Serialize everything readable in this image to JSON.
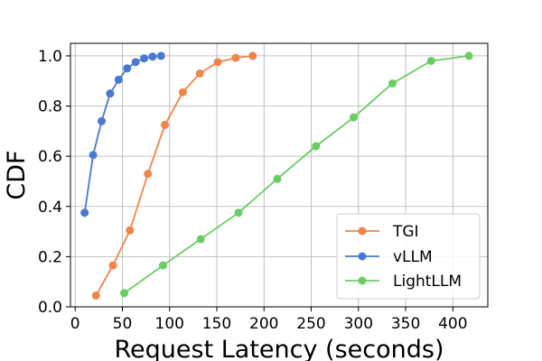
{
  "chart_data": {
    "type": "line",
    "xlabel": "Request Latency (seconds)",
    "ylabel": "CDF",
    "xlim": [
      -5,
      437
    ],
    "ylim": [
      0,
      1.05
    ],
    "x_ticks": [
      0,
      50,
      100,
      150,
      200,
      250,
      300,
      350,
      400
    ],
    "y_ticks": [
      0.0,
      0.2,
      0.4,
      0.6,
      0.8,
      1.0
    ],
    "x_tick_labels": [
      "0",
      "50",
      "100",
      "150",
      "200",
      "250",
      "300",
      "350",
      "400"
    ],
    "y_tick_labels": [
      "0.0",
      "0.2",
      "0.4",
      "0.6",
      "0.8",
      "1.0"
    ],
    "grid": true,
    "legend_position": "lower-right",
    "series": [
      {
        "name": "TGI",
        "color": "#ee854a",
        "marker": "circle",
        "x": [
          22,
          40,
          58,
          77,
          95,
          114,
          132,
          151,
          170,
          188
        ],
        "y": [
          0.045,
          0.165,
          0.305,
          0.53,
          0.725,
          0.855,
          0.93,
          0.975,
          0.992,
          1.0
        ]
      },
      {
        "name": "vLLM",
        "color": "#4878d0",
        "marker": "circle",
        "x": [
          10,
          19,
          28,
          37,
          46,
          55,
          64,
          73,
          82,
          91
        ],
        "y": [
          0.375,
          0.605,
          0.74,
          0.85,
          0.905,
          0.95,
          0.975,
          0.99,
          0.997,
          1.0
        ]
      },
      {
        "name": "LightLLM",
        "color": "#6acc64",
        "marker": "circle",
        "x": [
          52,
          93,
          133,
          173,
          214,
          255,
          295,
          336,
          377,
          417
        ],
        "y": [
          0.055,
          0.165,
          0.27,
          0.375,
          0.51,
          0.64,
          0.755,
          0.89,
          0.98,
          1.0
        ]
      }
    ]
  }
}
